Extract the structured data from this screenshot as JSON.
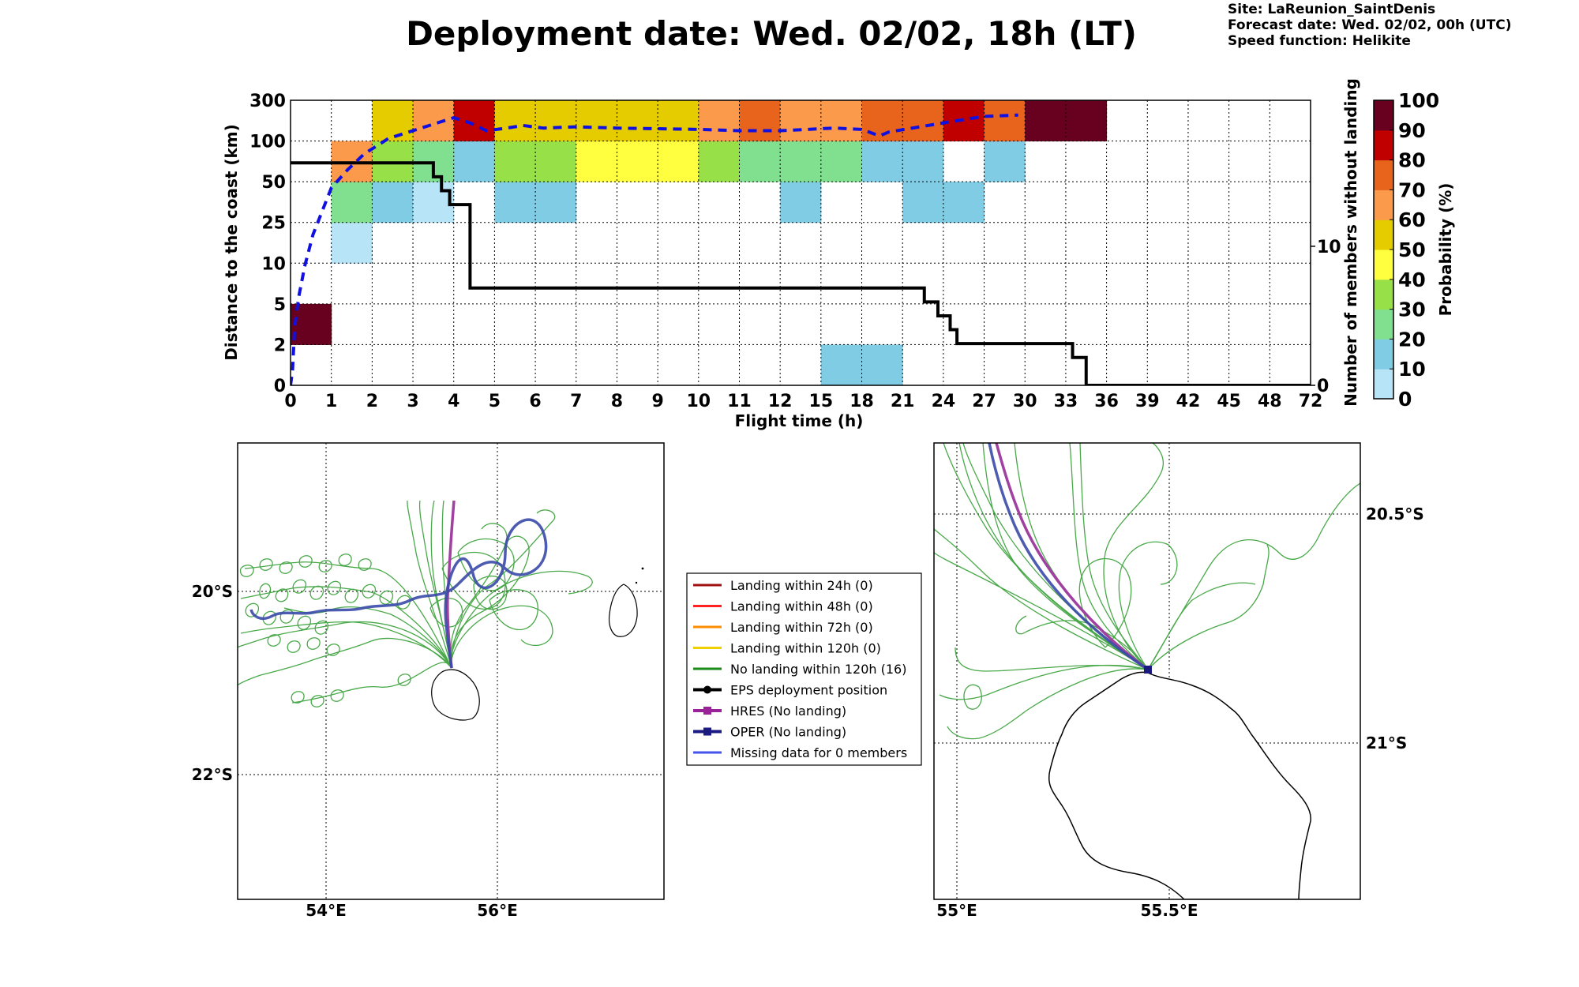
{
  "header": {
    "title": "Deployment date: Wed. 02/02, 18h (LT)",
    "site": "Site: LaReunion_SaintDenis",
    "forecast": "Forecast date: Wed. 02/02, 00h (UTC)",
    "speed": "Speed function: Helikite"
  },
  "chart_data": [
    {
      "type": "heatmap",
      "title": "Deployment date: Wed. 02/02, 18h (LT)",
      "xlabel": "Flight time (h)",
      "ylabel": "Distance to the coast (km)",
      "y2label": "Number of members without landing",
      "colorbar_label": "Probability (%)",
      "x_tick_labels": [
        "0",
        "1",
        "2",
        "3",
        "4",
        "5",
        "6",
        "7",
        "8",
        "9",
        "10",
        "11",
        "12",
        "15",
        "18",
        "21",
        "24",
        "27",
        "30",
        "33",
        "36",
        "39",
        "42",
        "45",
        "48",
        "72"
      ],
      "y_tick_labels": [
        "0",
        "2",
        "5",
        "10",
        "25",
        "50",
        "100",
        "300"
      ],
      "y2_tick_labels": [
        "0",
        "10"
      ],
      "colorbar_ticks": [
        "0",
        "10",
        "20",
        "30",
        "40",
        "50",
        "60",
        "70",
        "80",
        "90",
        "100"
      ],
      "colorbar_colors": [
        "#b8e4f8",
        "#80cce4",
        "#80e090",
        "#98e048",
        "#ffff40",
        "#e4cc00",
        "#fc9a4c",
        "#e8641c",
        "#c00000",
        "#680020"
      ],
      "cells": [
        {
          "col": 0,
          "row": 1,
          "prob": 100
        },
        {
          "col": 1,
          "row": 3,
          "prob": 5
        },
        {
          "col": 1,
          "row": 4,
          "prob": 25
        },
        {
          "col": 1,
          "row": 5,
          "prob": 65
        },
        {
          "col": 2,
          "row": 4,
          "prob": 15
        },
        {
          "col": 2,
          "row": 5,
          "prob": 35
        },
        {
          "col": 2,
          "row": 6,
          "prob": 55
        },
        {
          "col": 3,
          "row": 4,
          "prob": 5
        },
        {
          "col": 3,
          "row": 5,
          "prob": 25
        },
        {
          "col": 3,
          "row": 6,
          "prob": 65
        },
        {
          "col": 4,
          "row": 5,
          "prob": 15
        },
        {
          "col": 4,
          "row": 6,
          "prob": 85
        },
        {
          "col": 5,
          "row": 4,
          "prob": 15
        },
        {
          "col": 5,
          "row": 5,
          "prob": 35
        },
        {
          "col": 5,
          "row": 6,
          "prob": 55
        },
        {
          "col": 6,
          "row": 4,
          "prob": 15
        },
        {
          "col": 6,
          "row": 5,
          "prob": 35
        },
        {
          "col": 6,
          "row": 6,
          "prob": 55
        },
        {
          "col": 7,
          "row": 5,
          "prob": 45
        },
        {
          "col": 7,
          "row": 6,
          "prob": 55
        },
        {
          "col": 8,
          "row": 5,
          "prob": 45
        },
        {
          "col": 8,
          "row": 6,
          "prob": 55
        },
        {
          "col": 9,
          "row": 5,
          "prob": 45
        },
        {
          "col": 9,
          "row": 6,
          "prob": 55
        },
        {
          "col": 10,
          "row": 5,
          "prob": 35
        },
        {
          "col": 10,
          "row": 6,
          "prob": 65
        },
        {
          "col": 11,
          "row": 5,
          "prob": 25
        },
        {
          "col": 11,
          "row": 6,
          "prob": 75
        },
        {
          "col": 12,
          "row": 4,
          "prob": 15
        },
        {
          "col": 12,
          "row": 5,
          "prob": 25
        },
        {
          "col": 12,
          "row": 6,
          "prob": 65
        },
        {
          "col": 13,
          "row": 0,
          "prob": 15
        },
        {
          "col": 13,
          "row": 5,
          "prob": 25
        },
        {
          "col": 13,
          "row": 6,
          "prob": 65
        },
        {
          "col": 14,
          "row": 0,
          "prob": 15
        },
        {
          "col": 14,
          "row": 5,
          "prob": 15
        },
        {
          "col": 14,
          "row": 6,
          "prob": 75
        },
        {
          "col": 15,
          "row": 4,
          "prob": 15
        },
        {
          "col": 15,
          "row": 5,
          "prob": 15
        },
        {
          "col": 15,
          "row": 6,
          "prob": 75
        },
        {
          "col": 16,
          "row": 4,
          "prob": 15
        },
        {
          "col": 16,
          "row": 6,
          "prob": 85
        },
        {
          "col": 17,
          "row": 5,
          "prob": 15
        },
        {
          "col": 17,
          "row": 6,
          "prob": 75
        },
        {
          "col": 18,
          "row": 6,
          "prob": 100
        },
        {
          "col": 19,
          "row": 6,
          "prob": 100
        }
      ],
      "members_without_landing": [
        [
          0,
          16
        ],
        [
          3.3,
          16
        ],
        [
          3.5,
          15
        ],
        [
          3.7,
          14
        ],
        [
          3.9,
          13
        ],
        [
          4.4,
          7
        ],
        [
          21.7,
          7
        ],
        [
          22.6,
          6
        ],
        [
          23.6,
          5
        ],
        [
          24.5,
          4
        ],
        [
          25.0,
          3
        ],
        [
          25.3,
          3
        ],
        [
          33.5,
          2
        ],
        [
          34.5,
          0
        ],
        [
          72,
          0
        ]
      ],
      "mean_distance_curve": [
        [
          0,
          0
        ],
        [
          0.05,
          0.6
        ],
        [
          0.1,
          2.2
        ],
        [
          0.2,
          3.4
        ],
        [
          0.35,
          4.6
        ],
        [
          0.55,
          5.8
        ],
        [
          0.8,
          6.8
        ],
        [
          1,
          7.6
        ],
        [
          1.4,
          8.3
        ],
        [
          1.8,
          8.9
        ],
        [
          2.4,
          9.5
        ],
        [
          3,
          9.8
        ],
        [
          3.6,
          10.1
        ],
        [
          4,
          10.3
        ],
        [
          4.4,
          10.1
        ],
        [
          4.8,
          9.8
        ],
        [
          5.3,
          9.9
        ],
        [
          5.7,
          10.0
        ],
        [
          6.2,
          9.9
        ],
        [
          7,
          9.95
        ],
        [
          8,
          9.9
        ],
        [
          10,
          9.85
        ],
        [
          11,
          9.8
        ],
        [
          12,
          9.8
        ],
        [
          14,
          9.85
        ],
        [
          16,
          9.9
        ],
        [
          18,
          9.85
        ],
        [
          19.3,
          9.6
        ],
        [
          20,
          9.75
        ],
        [
          24,
          10.1
        ],
        [
          27,
          10.35
        ],
        [
          29.5,
          10.4
        ]
      ]
    },
    {
      "type": "map",
      "x_tick_labels": [
        "54°E",
        "56°E"
      ],
      "y_tick_labels": [
        "20°S",
        "22°S"
      ],
      "legend": [
        {
          "label": "Landing within 24h (0)",
          "color": "#a01010",
          "marker": "none"
        },
        {
          "label": "Landing within 48h (0)",
          "color": "#ff2020",
          "marker": "none"
        },
        {
          "label": "Landing within 72h (0)",
          "color": "#ff8c00",
          "marker": "none"
        },
        {
          "label": "Landing within 120h (0)",
          "color": "#f0d000",
          "marker": "none"
        },
        {
          "label": "No landing within 120h (16)",
          "color": "#1a8a1a",
          "marker": "none"
        },
        {
          "label": "EPS deployment position",
          "color": "#000000",
          "marker": "circle"
        },
        {
          "label": "HRES (No landing)",
          "color": "#992299",
          "marker": "square"
        },
        {
          "label": "OPER (No landing)",
          "color": "#1a1a80",
          "marker": "square"
        },
        {
          "label": "Missing data for 0 members",
          "color": "#4455ee",
          "marker": "none"
        }
      ]
    },
    {
      "type": "map",
      "x_tick_labels": [
        "55°E",
        "55.5°E"
      ],
      "y_tick_labels": [
        "20.5°S",
        "21°S"
      ]
    }
  ]
}
